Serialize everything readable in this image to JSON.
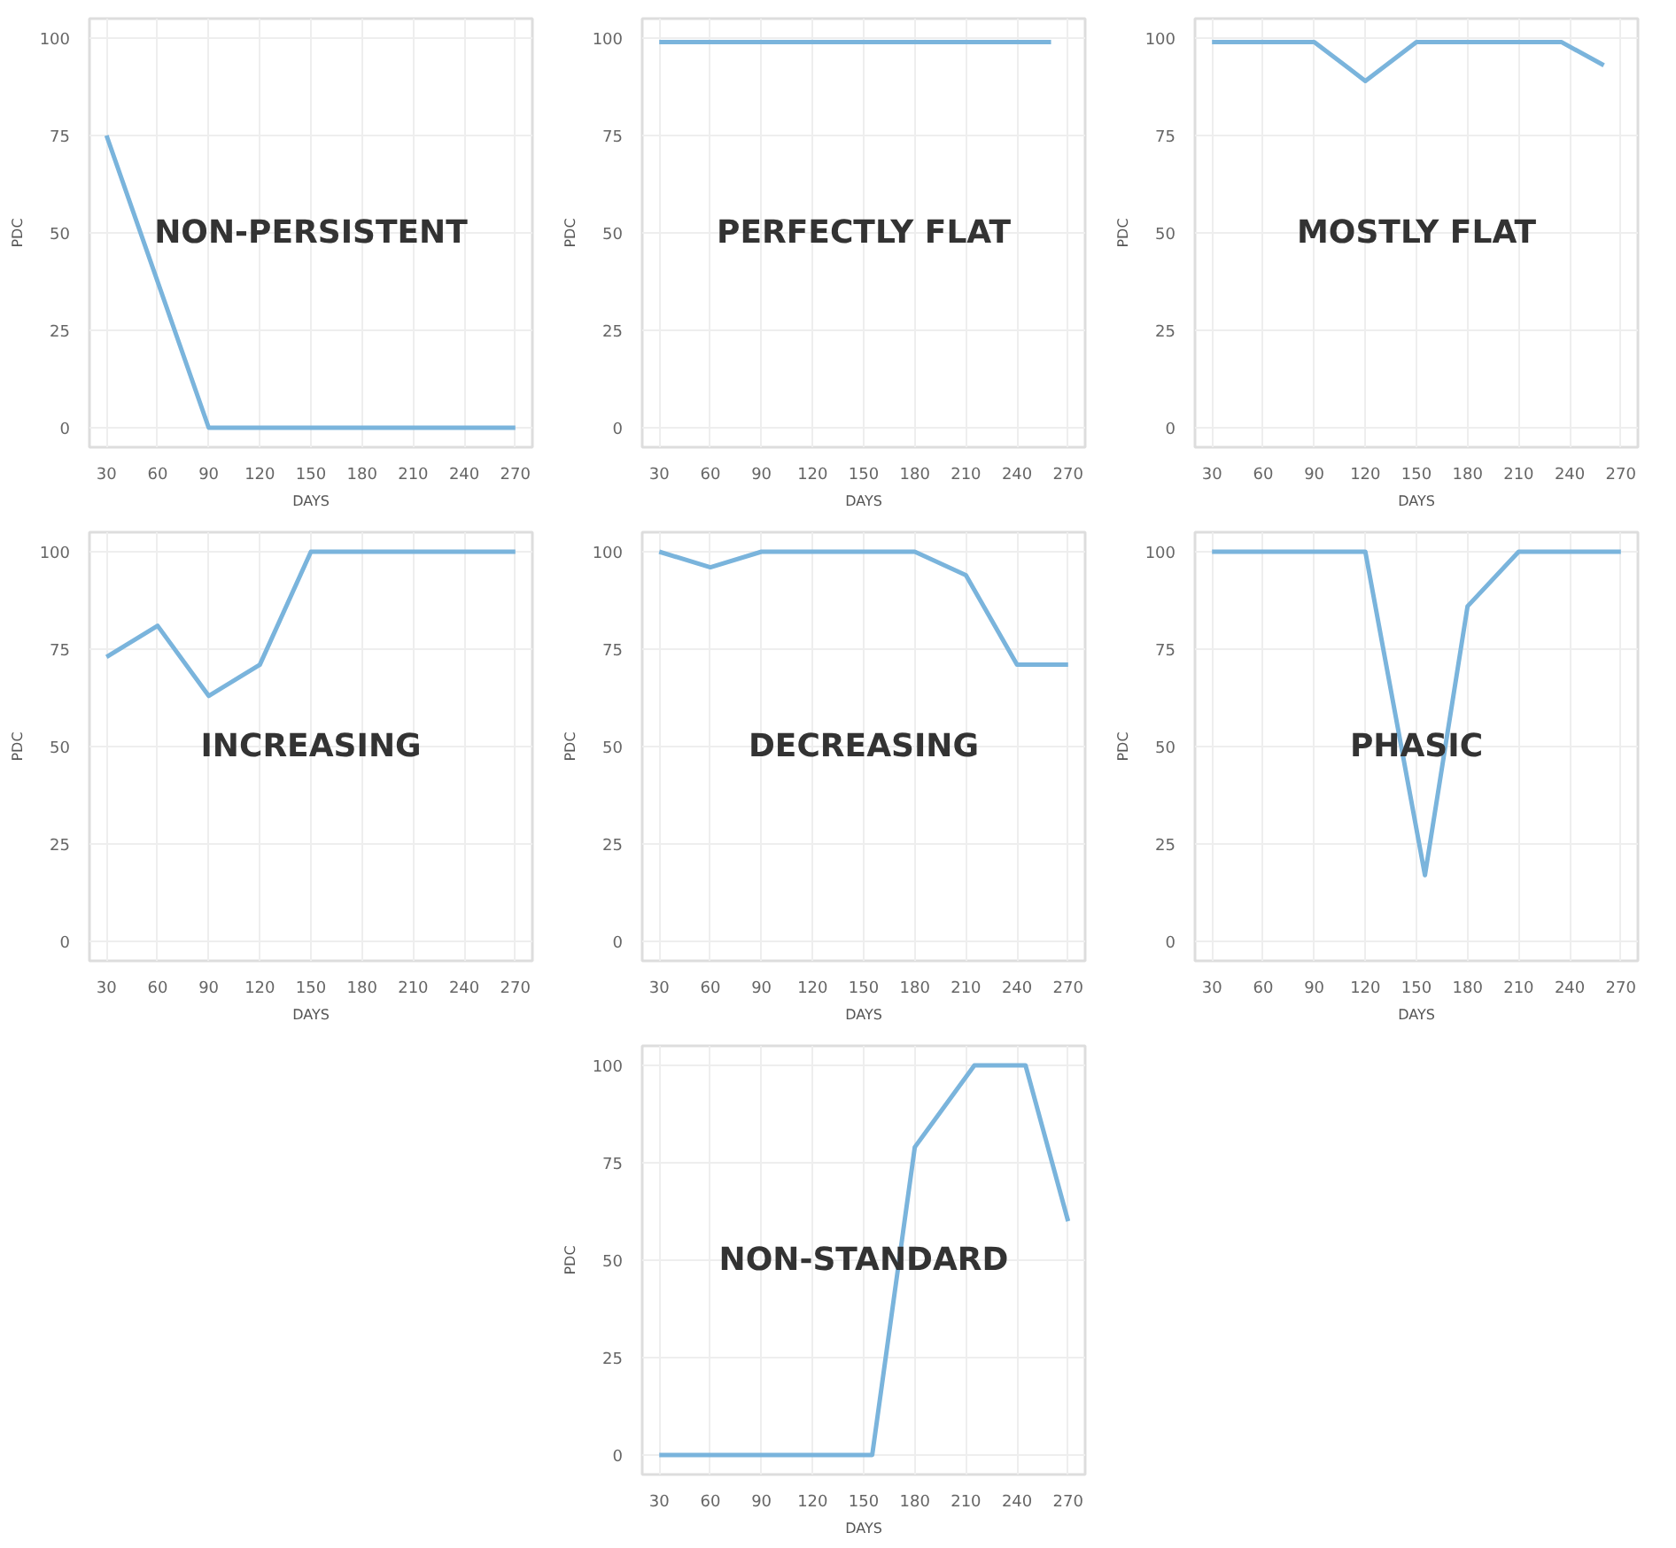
{
  "chart_data": [
    {
      "type": "line",
      "annotations": [
        "NON-PERSISTENT"
      ],
      "xlabel": "DAYS",
      "ylabel": "PDC",
      "x": [
        30,
        90,
        270
      ],
      "values": [
        75,
        0,
        0
      ],
      "color": "#7ab4dc",
      "xlim": [
        20,
        280
      ],
      "ylim": [
        -5,
        105
      ],
      "xticks": [
        30,
        60,
        90,
        120,
        150,
        180,
        210,
        240,
        270
      ],
      "yticks": [
        0,
        25,
        50,
        75,
        100
      ],
      "grid": true
    },
    {
      "type": "line",
      "annotations": [
        "PERFECTLY FLAT"
      ],
      "xlabel": "DAYS",
      "ylabel": "PDC",
      "x": [
        30,
        260
      ],
      "values": [
        99,
        99
      ],
      "color": "#7ab4dc",
      "xlim": [
        20,
        280
      ],
      "ylim": [
        -5,
        105
      ],
      "xticks": [
        30,
        60,
        90,
        120,
        150,
        180,
        210,
        240,
        270
      ],
      "yticks": [
        0,
        25,
        50,
        75,
        100
      ],
      "grid": true
    },
    {
      "type": "line",
      "annotations": [
        "MOSTLY FLAT"
      ],
      "xlabel": "DAYS",
      "ylabel": "PDC",
      "x": [
        30,
        90,
        120,
        150,
        235,
        260
      ],
      "values": [
        99,
        99,
        89,
        99,
        99,
        93
      ],
      "color": "#7ab4dc",
      "xlim": [
        20,
        280
      ],
      "ylim": [
        -5,
        105
      ],
      "xticks": [
        30,
        60,
        90,
        120,
        150,
        180,
        210,
        240,
        270
      ],
      "yticks": [
        0,
        25,
        50,
        75,
        100
      ],
      "grid": true
    },
    {
      "type": "line",
      "annotations": [
        "INCREASING"
      ],
      "xlabel": "DAYS",
      "ylabel": "PDC",
      "x": [
        30,
        60,
        90,
        120,
        150,
        270
      ],
      "values": [
        73,
        81,
        63,
        71,
        100,
        100
      ],
      "color": "#7ab4dc",
      "xlim": [
        20,
        280
      ],
      "ylim": [
        -5,
        105
      ],
      "xticks": [
        30,
        60,
        90,
        120,
        150,
        180,
        210,
        240,
        270
      ],
      "yticks": [
        0,
        25,
        50,
        75,
        100
      ],
      "grid": true
    },
    {
      "type": "line",
      "annotations": [
        "DECREASING"
      ],
      "xlabel": "DAYS",
      "ylabel": "PDC",
      "x": [
        30,
        60,
        90,
        180,
        210,
        240,
        270
      ],
      "values": [
        100,
        96,
        100,
        100,
        94,
        71,
        71
      ],
      "color": "#7ab4dc",
      "xlim": [
        20,
        280
      ],
      "ylim": [
        -5,
        105
      ],
      "xticks": [
        30,
        60,
        90,
        120,
        150,
        180,
        210,
        240,
        270
      ],
      "yticks": [
        0,
        25,
        50,
        75,
        100
      ],
      "grid": true
    },
    {
      "type": "line",
      "annotations": [
        "PHASIC"
      ],
      "xlabel": "DAYS",
      "ylabel": "PDC",
      "x": [
        30,
        120,
        155,
        180,
        210,
        270
      ],
      "values": [
        100,
        100,
        17,
        86,
        100,
        100
      ],
      "color": "#7ab4dc",
      "xlim": [
        20,
        280
      ],
      "ylim": [
        -5,
        105
      ],
      "xticks": [
        30,
        60,
        90,
        120,
        150,
        180,
        210,
        240,
        270
      ],
      "yticks": [
        0,
        25,
        50,
        75,
        100
      ],
      "grid": true
    },
    {
      "type": "line",
      "annotations": [
        "NON-STANDARD"
      ],
      "xlabel": "DAYS",
      "ylabel": "PDC",
      "x": [
        30,
        155,
        180,
        215,
        245,
        270
      ],
      "values": [
        0,
        0,
        79,
        100,
        100,
        60
      ],
      "color": "#7ab4dc",
      "xlim": [
        20,
        280
      ],
      "ylim": [
        -5,
        105
      ],
      "xticks": [
        30,
        60,
        90,
        120,
        150,
        180,
        210,
        240,
        270
      ],
      "yticks": [
        0,
        25,
        50,
        75,
        100
      ],
      "grid": true
    }
  ]
}
